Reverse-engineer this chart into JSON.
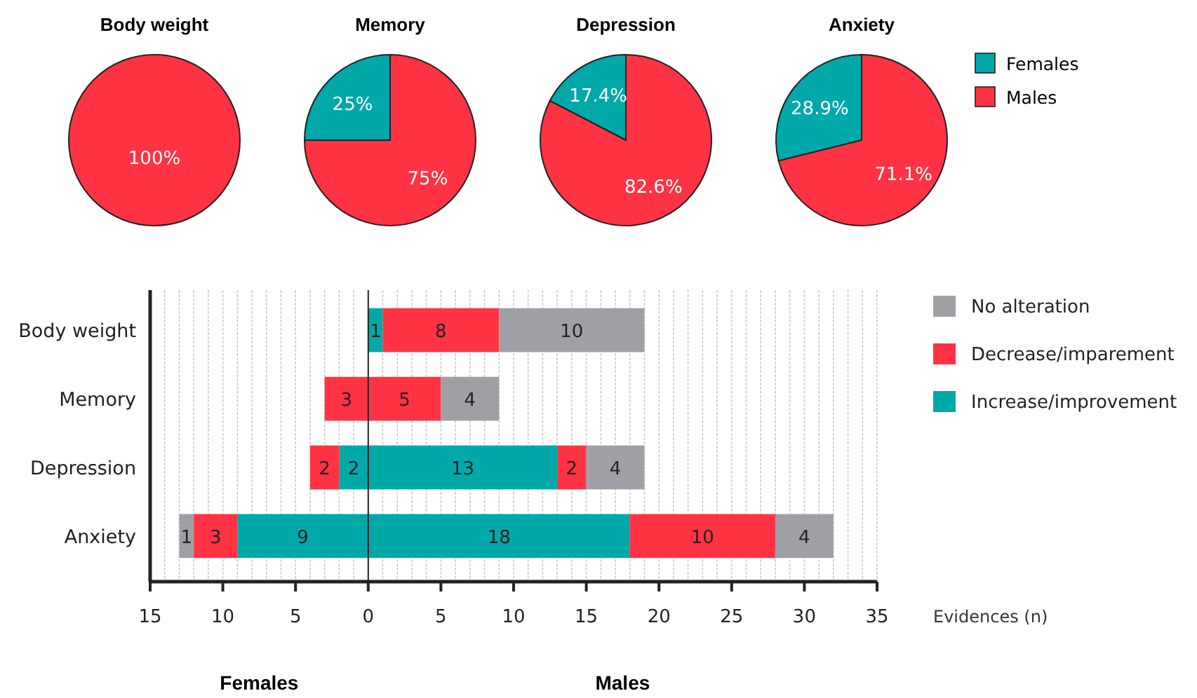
{
  "chart_data": [
    {
      "type": "pie",
      "title": "Body weight",
      "categories": [
        null,
        null
      ],
      "values": [
        0,
        100
      ],
      "colors": [
        "#00a8a8",
        "#ff3344"
      ],
      "value_labels": [
        null,
        "100%"
      ]
    },
    {
      "type": "pie",
      "title": "Memory",
      "categories": [
        null,
        null
      ],
      "values": [
        25,
        75
      ],
      "colors": [
        "#00a8a8",
        "#ff3344"
      ],
      "value_labels": [
        "25%",
        "75%"
      ]
    },
    {
      "type": "pie",
      "title": "Depression",
      "categories": [
        null,
        null
      ],
      "values": [
        17.4,
        82.6
      ],
      "colors": [
        "#00a8a8",
        "#ff3344"
      ],
      "value_labels": [
        "17.4%",
        "82.6%"
      ]
    },
    {
      "type": "pie",
      "title": "Anxiety",
      "categories": [
        "Females",
        "Males"
      ],
      "values": [
        28.9,
        71.1
      ],
      "colors": [
        "#00a8a8",
        "#ff3344"
      ],
      "value_labels": [
        "28.9%",
        "71.1%"
      ],
      "legend": "right"
    },
    {
      "type": "bar",
      "orientation": "horizontal",
      "stacked": true,
      "categories": [
        "Body weight",
        "Memory",
        "Depression",
        "Anxiety"
      ],
      "series": [
        {
          "color": "#00a8a8",
          "values": [
            null,
            null,
            2,
            9
          ]
        },
        {
          "color": "#ff3344",
          "values": [
            null,
            3,
            2,
            3
          ]
        },
        {
          "color": "#a0a0a4",
          "values": [
            null,
            null,
            null,
            1
          ]
        }
      ],
      "xlim": [
        15,
        0
      ],
      "xticks": [
        15,
        {
          "value": 14,
          "label": null
        },
        {
          "value": 13,
          "label": null
        },
        {
          "value": 12,
          "label": null
        },
        {
          "value": 11,
          "label": null
        },
        10,
        {
          "value": 9,
          "label": null
        },
        {
          "value": 8,
          "label": null
        },
        {
          "value": 7,
          "label": null
        },
        {
          "value": 6,
          "label": null
        },
        5,
        {
          "value": 4,
          "label": null
        },
        {
          "value": 3,
          "label": null
        },
        {
          "value": 2,
          "label": null
        },
        {
          "value": 1,
          "label": null
        }
      ],
      "grid": "x",
      "data_labels": true,
      "annotations": [
        "Females"
      ]
    },
    {
      "type": "bar",
      "orientation": "horizontal",
      "stacked": true,
      "categories": [
        null,
        null,
        null,
        null
      ],
      "series": [
        {
          "name": "Increase/improvement",
          "color": "#00a8a8",
          "values": [
            1,
            null,
            13,
            18
          ]
        },
        {
          "name": "Decrease/imparement",
          "color": "#ff3344",
          "values": [
            8,
            5,
            2,
            10
          ]
        },
        {
          "name": "No alteration",
          "color": "#a0a0a4",
          "values": [
            10,
            4,
            4,
            4
          ]
        }
      ],
      "xlim": [
        0,
        35
      ],
      "xticks": [
        0,
        {
          "value": 1,
          "label": null
        },
        {
          "value": 2,
          "label": null
        },
        {
          "value": 3,
          "label": null
        },
        {
          "value": 4,
          "label": null
        },
        5,
        {
          "value": 6,
          "label": null
        },
        {
          "value": 7,
          "label": null
        },
        {
          "value": 8,
          "label": null
        },
        {
          "value": 9,
          "label": null
        },
        10,
        {
          "value": 11,
          "label": null
        },
        {
          "value": 12,
          "label": null
        },
        {
          "value": 13,
          "label": null
        },
        {
          "value": 14,
          "label": null
        },
        15,
        {
          "value": 16,
          "label": null
        },
        {
          "value": 17,
          "label": null
        },
        {
          "value": 18,
          "label": null
        },
        {
          "value": 19,
          "label": null
        },
        20,
        {
          "value": 21,
          "label": null
        },
        {
          "value": 22,
          "label": null
        },
        {
          "value": 23,
          "label": null
        },
        {
          "value": 24,
          "label": null
        },
        25,
        {
          "value": 26,
          "label": null
        },
        {
          "value": 27,
          "label": null
        },
        {
          "value": 28,
          "label": null
        },
        {
          "value": 29,
          "label": null
        },
        30,
        {
          "value": 31,
          "label": null
        },
        {
          "value": 32,
          "label": null
        },
        {
          "value": 33,
          "label": null
        },
        {
          "value": 34,
          "label": null
        },
        35
      ],
      "xlabel": "Evidences (n)",
      "grid": "x",
      "legend": "right",
      "tick_labels": "x",
      "data_labels": true,
      "annotations": [
        "Males"
      ]
    }
  ]
}
